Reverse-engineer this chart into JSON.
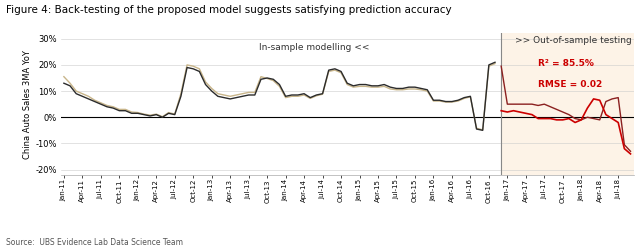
{
  "title": "Figure 4: Back-testing of the proposed model suggests satisfying prediction accuracy",
  "ylabel": "China Auto Sales 3MA YoY",
  "source": "Source:  UBS Evidence Lab Data Science Team",
  "ylim": [
    -0.22,
    0.32
  ],
  "yticks": [
    -0.2,
    -0.1,
    0.0,
    0.1,
    0.2,
    0.3
  ],
  "ytick_labels": [
    "-20%",
    "-10%",
    "0%",
    "10%",
    "20%",
    "30%"
  ],
  "split_index": 71,
  "insample_label": "In-sample modelling <<",
  "outsample_label": ">> Out-of-sample testing",
  "r2_label": "R² = 85.5%",
  "rmse_label": "RMSE = 0.02",
  "actual_color": "#2b2b2b",
  "model_color": "#c8b58a",
  "outsample_color": "#cc0000",
  "actual_os_color": "#8b2020",
  "bg_outsample": "#fdf3e7",
  "xtick_labels": [
    "Jan-11",
    "Apr-11",
    "Jul-11",
    "Oct-11",
    "Jan-12",
    "Apr-12",
    "Jul-12",
    "Oct-12",
    "Jan-13",
    "Apr-13",
    "Jul-13",
    "Oct-13",
    "Jan-14",
    "Apr-14",
    "Jul-14",
    "Oct-14",
    "Jan-15",
    "Apr-15",
    "Jul-15",
    "Oct-15",
    "Jan-16",
    "Apr-16",
    "Jul-16",
    "Oct-16",
    "Jan-17",
    "Apr-17",
    "Jul-17",
    "Oct-17",
    "Jan-18",
    "Apr-18",
    "Jul-18",
    "Oct-18"
  ],
  "actual": [
    0.13,
    0.12,
    0.09,
    0.08,
    0.07,
    0.06,
    0.05,
    0.04,
    0.035,
    0.025,
    0.025,
    0.015,
    0.015,
    0.01,
    0.005,
    0.01,
    0.0,
    0.015,
    0.01,
    0.08,
    0.19,
    0.185,
    0.175,
    0.125,
    0.1,
    0.08,
    0.075,
    0.07,
    0.075,
    0.08,
    0.085,
    0.085,
    0.145,
    0.15,
    0.145,
    0.125,
    0.08,
    0.085,
    0.085,
    0.09,
    0.075,
    0.085,
    0.09,
    0.18,
    0.185,
    0.175,
    0.13,
    0.12,
    0.125,
    0.125,
    0.12,
    0.12,
    0.125,
    0.115,
    0.11,
    0.11,
    0.115,
    0.115,
    0.11,
    0.105,
    0.065,
    0.065,
    0.06,
    0.06,
    0.065,
    0.075,
    0.08,
    -0.045,
    -0.05,
    0.2,
    0.21,
    0.195,
    0.05,
    0.05,
    0.05,
    0.05,
    0.05,
    0.045,
    0.05,
    0.04,
    0.03,
    0.02,
    0.01,
    -0.005,
    -0.01,
    0.0,
    -0.005,
    -0.01,
    0.06,
    0.07,
    0.075,
    -0.105,
    -0.13
  ],
  "model": [
    0.155,
    0.13,
    0.1,
    0.09,
    0.08,
    0.065,
    0.055,
    0.045,
    0.04,
    0.03,
    0.03,
    0.02,
    0.018,
    0.012,
    0.008,
    0.012,
    0.002,
    0.018,
    0.012,
    0.09,
    0.2,
    0.195,
    0.185,
    0.135,
    0.11,
    0.09,
    0.085,
    0.08,
    0.085,
    0.09,
    0.095,
    0.095,
    0.155,
    0.148,
    0.14,
    0.118,
    0.075,
    0.08,
    0.08,
    0.085,
    0.072,
    0.082,
    0.088,
    0.175,
    0.18,
    0.17,
    0.125,
    0.115,
    0.118,
    0.118,
    0.115,
    0.115,
    0.118,
    0.108,
    0.105,
    0.105,
    0.108,
    0.108,
    0.105,
    0.1,
    0.062,
    0.062,
    0.058,
    0.058,
    0.062,
    0.072,
    0.078,
    -0.042,
    -0.048,
    0.195,
    0.205,
    0.19,
    0.048,
    0.048,
    0.048,
    0.048,
    0.048,
    0.042,
    0.048,
    0.038,
    0.028,
    0.018,
    0.008,
    -0.003,
    -0.008,
    0.002,
    null,
    null,
    null,
    null,
    null,
    null,
    null
  ],
  "outsample_est": [
    null,
    null,
    null,
    null,
    null,
    null,
    null,
    null,
    null,
    null,
    null,
    null,
    null,
    null,
    null,
    null,
    null,
    null,
    null,
    null,
    null,
    null,
    null,
    null,
    null,
    null,
    null,
    null,
    null,
    null,
    null,
    null,
    null,
    null,
    null,
    null,
    null,
    null,
    null,
    null,
    null,
    null,
    null,
    null,
    null,
    null,
    null,
    null,
    null,
    null,
    null,
    null,
    null,
    null,
    null,
    null,
    null,
    null,
    null,
    null,
    null,
    null,
    null,
    null,
    null,
    null,
    null,
    null,
    null,
    null,
    null,
    0.025,
    0.02,
    0.025,
    0.02,
    0.015,
    0.01,
    -0.005,
    -0.005,
    -0.005,
    -0.01,
    -0.01,
    -0.005,
    -0.02,
    -0.01,
    0.035,
    0.07,
    0.065,
    0.01,
    -0.005,
    -0.02,
    -0.12,
    -0.14
  ]
}
